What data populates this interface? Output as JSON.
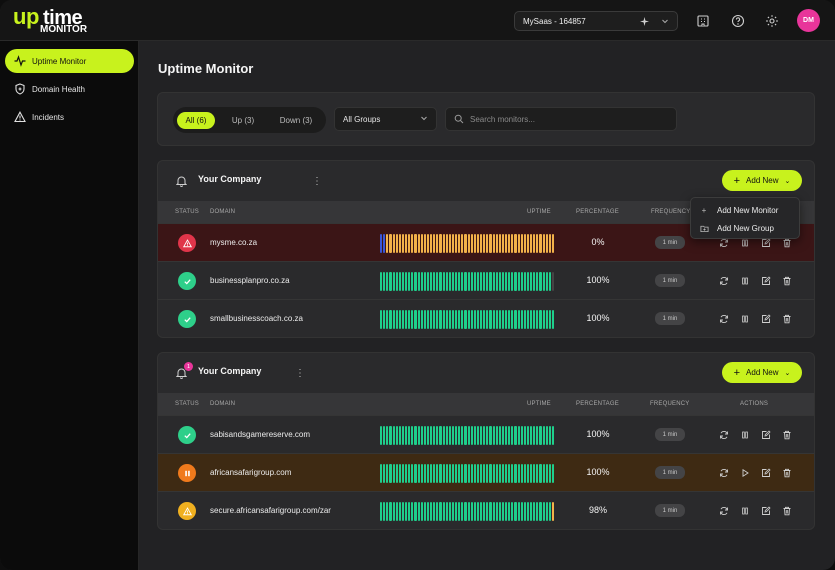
{
  "brand": {
    "logo_up": "up",
    "logo_time": "time",
    "logo_sub": "MONITOR",
    "accent": "#c8f21d"
  },
  "header": {
    "account": "MySaas - 164857",
    "avatar_initials": "DM",
    "icons": [
      "building-icon",
      "help-icon",
      "settings-icon"
    ]
  },
  "sidebar": {
    "items": [
      {
        "label": "Uptime Monitor",
        "icon": "pulse-icon",
        "active": true
      },
      {
        "label": "Domain Health",
        "icon": "shield-icon",
        "active": false
      },
      {
        "label": "Incidents",
        "icon": "warning-icon",
        "active": false
      }
    ]
  },
  "page": {
    "title": "Uptime Monitor"
  },
  "filters": {
    "segments": [
      {
        "label": "All (6)",
        "active": true
      },
      {
        "label": "Up (3)",
        "active": false
      },
      {
        "label": "Down (3)",
        "active": false
      }
    ],
    "group_select": "All Groups",
    "search_placeholder": "Search monitors..."
  },
  "columns": {
    "status": "STATUS",
    "domain": "DOMAIN",
    "uptime": "UPTIME",
    "percentage": "PERCENTAGE",
    "frequency": "FREQUENCY",
    "actions": "ACTIONS"
  },
  "add_label": "Add New",
  "dropdown": {
    "items": [
      "Add New Monitor",
      "Add New Group"
    ]
  },
  "groups": [
    {
      "name": "Your Company",
      "badge": "",
      "monitors": [
        {
          "domain": "mysme.co.za",
          "status": "down",
          "percentage": "0%",
          "frequency": "1 min",
          "uptime_pattern": "down"
        },
        {
          "domain": "businessplanpro.co.za",
          "status": "up",
          "percentage": "100%",
          "frequency": "1 min",
          "uptime_pattern": "up-end-gray"
        },
        {
          "domain": "smallbusinesscoach.co.za",
          "status": "up",
          "percentage": "100%",
          "frequency": "1 min",
          "uptime_pattern": "up"
        }
      ]
    },
    {
      "name": "Your Company",
      "badge": "1",
      "monitors": [
        {
          "domain": "sabisandsgamereserve.com",
          "status": "up",
          "percentage": "100%",
          "frequency": "1 min",
          "uptime_pattern": "up"
        },
        {
          "domain": "africansafarigroup.com",
          "status": "paused",
          "percentage": "100%",
          "frequency": "1 min",
          "uptime_pattern": "up"
        },
        {
          "domain": "secure.africansafarigroup.com/zar",
          "status": "warning",
          "percentage": "98%",
          "frequency": "1 min",
          "uptime_pattern": "up-end-amber"
        }
      ]
    }
  ],
  "colors": {
    "up": "#2ecf8a",
    "down": "#e0354a",
    "paused": "#f07a1c",
    "warning": "#f0b020",
    "bar_up": "#1fcf8c",
    "bar_down": "#f2b24a",
    "bar_blue": "#3a56d8"
  }
}
